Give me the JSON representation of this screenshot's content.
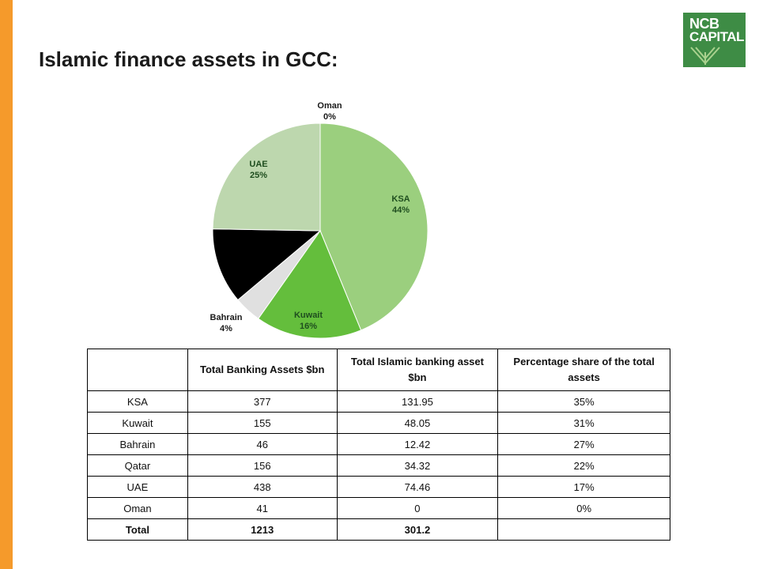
{
  "title": "Islamic finance assets in GCC:",
  "logo": {
    "line1": "NCB",
    "line2": "CAPITAL",
    "brand_color": "#3E8C45"
  },
  "accent_bar_color": "#F59A2B",
  "chart_data": {
    "type": "pie",
    "title": "",
    "slices": [
      {
        "label": "KSA",
        "percent_label": "44%",
        "value": 131.95,
        "color": "#9BCF7E"
      },
      {
        "label": "Kuwait",
        "percent_label": "16%",
        "value": 48.05,
        "color": "#64BE3C"
      },
      {
        "label": "Bahrain",
        "percent_label": "4%",
        "value": 12.42,
        "color": "#E0E0E0"
      },
      {
        "label": "",
        "percent_label": "",
        "value": 34.32,
        "color": "#000000"
      },
      {
        "label": "UAE",
        "percent_label": "25%",
        "value": 74.46,
        "color": "#BDD7AE"
      },
      {
        "label": "Oman",
        "percent_label": "0%",
        "value": 0,
        "color": "#7F7F7F"
      }
    ]
  },
  "table": {
    "headers": [
      "",
      "Total Banking Assets $bn",
      "Total Islamic banking asset $bn",
      "Percentage share of the total assets"
    ],
    "rows": [
      [
        "KSA",
        "377",
        "131.95",
        "35%"
      ],
      [
        "Kuwait",
        "155",
        "48.05",
        "31%"
      ],
      [
        "Bahrain",
        "46",
        "12.42",
        "27%"
      ],
      [
        "Qatar",
        "156",
        "34.32",
        "22%"
      ],
      [
        "UAE",
        "438",
        "74.46",
        "17%"
      ],
      [
        "Oman",
        "41",
        "0",
        "0%"
      ]
    ],
    "total_row": [
      "Total",
      "1213",
      "301.2",
      ""
    ]
  }
}
